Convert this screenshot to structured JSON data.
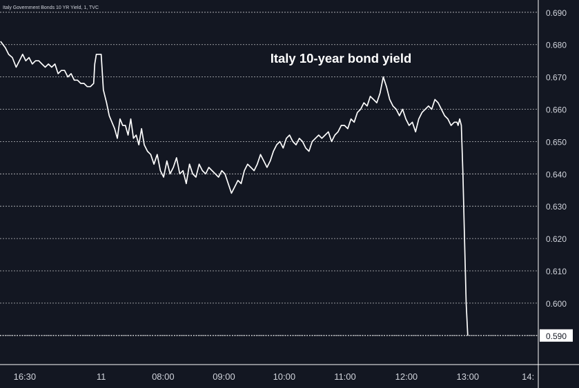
{
  "header": {
    "symbol_text": "Italy Government Bonds 10 YR Yield, 1, TVC"
  },
  "colors": {
    "background": "#131722",
    "line": "#ffffff",
    "grid": "#ffffff",
    "axis_text": "#d1d4dc",
    "last_price_bg": "#ffffff",
    "last_price_text": "#131722",
    "frame": "#ffffff"
  },
  "chart_data": {
    "type": "line",
    "title": "Italy 10-year bond yield",
    "xlabel": "",
    "ylabel": "",
    "x_tick_labels": [
      "16:30",
      "11",
      "08:00",
      "09:00",
      "10:00",
      "11:00",
      "12:00",
      "13:00",
      "14:"
    ],
    "x_domain": [
      0,
      100
    ],
    "x_ticks": [
      4.6,
      18.8,
      30.3,
      41.6,
      52.8,
      64.1,
      75.5,
      86.9,
      98.1
    ],
    "y_ticks": [
      0.59,
      0.6,
      0.61,
      0.62,
      0.63,
      0.64,
      0.65,
      0.66,
      0.67,
      0.68,
      0.69
    ],
    "y_tick_labels": [
      "0.590",
      "0.600",
      "0.610",
      "0.620",
      "0.630",
      "0.640",
      "0.650",
      "0.660",
      "0.670",
      "0.680",
      "0.690"
    ],
    "ylim": [
      0.581,
      0.6938
    ],
    "grid": true,
    "last_value": 0.59,
    "last_value_label": "0.590",
    "series": [
      {
        "name": "",
        "x": [
          0.1,
          1.0,
          1.6,
          2.3,
          3.0,
          3.6,
          4.2,
          4.8,
          5.4,
          6.0,
          6.6,
          7.2,
          7.8,
          8.4,
          9.0,
          9.6,
          10.2,
          10.8,
          11.4,
          12.0,
          12.6,
          13.2,
          13.8,
          14.4,
          15.0,
          15.6,
          16.2,
          16.8,
          17.4,
          17.6,
          17.9,
          18.3,
          18.8,
          19.2,
          19.8,
          20.3,
          20.8,
          21.3,
          21.8,
          22.3,
          22.8,
          23.3,
          23.8,
          24.3,
          24.8,
          25.3,
          25.8,
          26.3,
          26.8,
          27.4,
          28.0,
          28.6,
          29.2,
          29.8,
          30.4,
          31.0,
          31.6,
          32.2,
          32.8,
          33.4,
          34.0,
          34.6,
          35.2,
          35.8,
          36.4,
          37.0,
          37.6,
          38.2,
          38.8,
          39.4,
          40.0,
          40.6,
          41.2,
          41.8,
          42.4,
          43.0,
          43.6,
          44.2,
          44.8,
          45.4,
          46.0,
          46.6,
          47.2,
          47.8,
          48.4,
          49.0,
          49.6,
          50.2,
          50.8,
          51.4,
          52.0,
          52.6,
          53.2,
          53.8,
          54.4,
          55.0,
          55.6,
          56.2,
          56.8,
          57.4,
          58.0,
          58.6,
          59.2,
          59.8,
          60.4,
          61.0,
          61.6,
          62.2,
          62.8,
          63.4,
          64.0,
          64.6,
          65.2,
          65.8,
          66.4,
          67.0,
          67.6,
          68.2,
          68.8,
          69.4,
          70.0,
          70.6,
          71.2,
          71.8,
          72.4,
          73.0,
          73.6,
          74.2,
          74.8,
          75.4,
          76.0,
          76.6,
          77.2,
          77.8,
          78.4,
          79.0,
          79.6,
          80.2,
          80.8,
          81.4,
          82.0,
          82.6,
          83.2,
          83.8,
          84.4,
          84.9,
          85.1,
          85.4,
          85.7,
          86.0,
          86.3,
          86.6,
          86.9
        ],
        "y": [
          0.681,
          0.679,
          0.677,
          0.676,
          0.673,
          0.675,
          0.677,
          0.675,
          0.676,
          0.674,
          0.675,
          0.675,
          0.674,
          0.673,
          0.674,
          0.673,
          0.674,
          0.671,
          0.672,
          0.672,
          0.67,
          0.671,
          0.669,
          0.669,
          0.668,
          0.668,
          0.667,
          0.667,
          0.668,
          0.674,
          0.677,
          0.677,
          0.677,
          0.666,
          0.662,
          0.658,
          0.656,
          0.654,
          0.651,
          0.657,
          0.655,
          0.655,
          0.652,
          0.657,
          0.651,
          0.652,
          0.649,
          0.654,
          0.649,
          0.647,
          0.646,
          0.643,
          0.646,
          0.641,
          0.639,
          0.644,
          0.64,
          0.642,
          0.645,
          0.64,
          0.641,
          0.637,
          0.643,
          0.64,
          0.639,
          0.643,
          0.641,
          0.64,
          0.642,
          0.641,
          0.64,
          0.639,
          0.641,
          0.64,
          0.637,
          0.634,
          0.636,
          0.638,
          0.637,
          0.641,
          0.643,
          0.642,
          0.641,
          0.643,
          0.646,
          0.644,
          0.642,
          0.644,
          0.647,
          0.649,
          0.65,
          0.648,
          0.651,
          0.652,
          0.65,
          0.649,
          0.651,
          0.65,
          0.648,
          0.647,
          0.65,
          0.651,
          0.652,
          0.651,
          0.652,
          0.653,
          0.65,
          0.652,
          0.653,
          0.655,
          0.655,
          0.654,
          0.657,
          0.656,
          0.659,
          0.66,
          0.662,
          0.661,
          0.664,
          0.663,
          0.662,
          0.665,
          0.67,
          0.667,
          0.663,
          0.661,
          0.66,
          0.658,
          0.66,
          0.657,
          0.655,
          0.656,
          0.653,
          0.657,
          0.659,
          0.66,
          0.661,
          0.66,
          0.663,
          0.662,
          0.66,
          0.658,
          0.657,
          0.655,
          0.656,
          0.656,
          0.655,
          0.657,
          0.655,
          0.64,
          0.62,
          0.6,
          0.59
        ]
      }
    ]
  }
}
